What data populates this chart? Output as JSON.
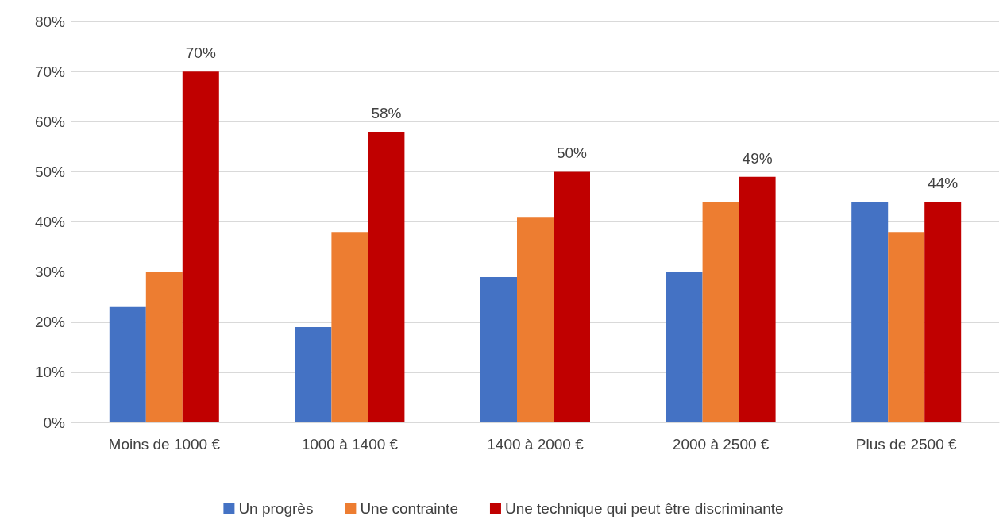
{
  "chart_data": {
    "type": "bar",
    "categories": [
      "Moins de 1000 €",
      "1000 à 1400 €",
      "1400 à 2000 €",
      "2000 à 2500 €",
      "Plus de 2500 €"
    ],
    "series": [
      {
        "name": "Un progrès",
        "color": "#4472c4",
        "values": [
          23,
          19,
          29,
          30,
          44
        ]
      },
      {
        "name": "Une contrainte",
        "color": "#ed7d31",
        "values": [
          30,
          38,
          41,
          44,
          38
        ]
      },
      {
        "name": "Une technique qui peut être discriminante",
        "color": "#c00000",
        "values": [
          70,
          58,
          50,
          49,
          44
        ],
        "value_labels": [
          "70%",
          "58%",
          "50%",
          "49%",
          "44%"
        ]
      }
    ],
    "ylim": [
      0,
      80
    ],
    "yticks": [
      {
        "value": 0,
        "label": "0%"
      },
      {
        "value": 10,
        "label": "10%"
      },
      {
        "value": 20,
        "label": "20%"
      },
      {
        "value": 30,
        "label": "30%"
      },
      {
        "value": 40,
        "label": "40%"
      },
      {
        "value": 50,
        "label": "50%"
      },
      {
        "value": 60,
        "label": "60%"
      },
      {
        "value": 70,
        "label": "70%"
      },
      {
        "value": 80,
        "label": "80%"
      }
    ],
    "grid": "y",
    "legend": "bottom"
  }
}
